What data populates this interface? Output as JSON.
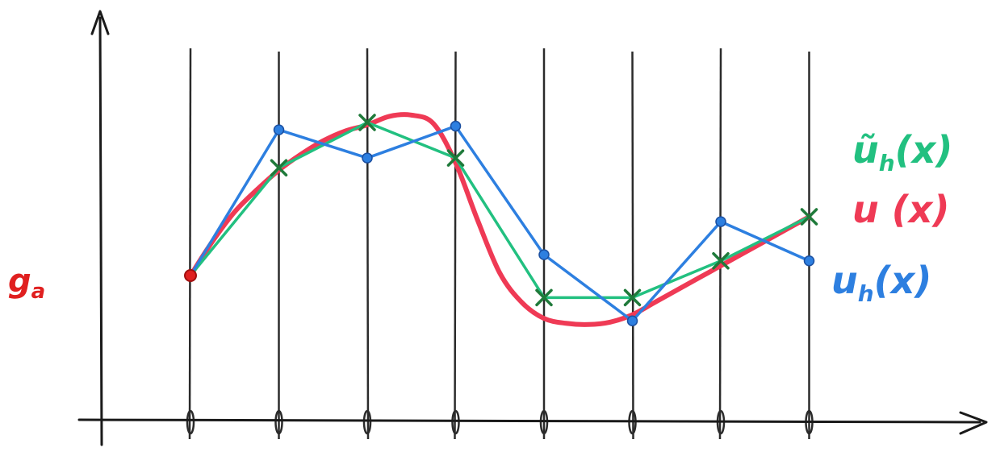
{
  "colors": {
    "axis": "#1a1a1a",
    "gridline": "#2b2b2b",
    "exact": "#ef3a55",
    "nodal_interp": "#22c080",
    "fe_solution": "#2d7fe0",
    "marker_cross": "#1f7a3a",
    "boundary_point": "#e02020"
  },
  "labels": {
    "boundary_value": "g",
    "boundary_value_sub": "a",
    "nodal_interp": "ũ",
    "nodal_interp_sub": "h",
    "nodal_interp_arg": "(x)",
    "exact": "u (x)",
    "fe_solution": "u",
    "fe_solution_sub": "h",
    "fe_solution_arg": "(x)"
  },
  "chart_data": {
    "type": "line",
    "nodes": [
      0,
      1,
      2,
      3,
      4,
      5,
      6,
      7
    ],
    "ylim": [
      -1.6,
      1.6
    ],
    "series": [
      {
        "key": "exact",
        "name": "u (x)",
        "x": [
          0,
          0.25,
          0.5,
          0.75,
          1,
          1.25,
          1.5,
          1.75,
          2,
          2.25,
          2.5,
          2.75,
          3,
          3.25,
          3.5,
          3.75,
          4,
          4.25,
          4.5,
          4.75,
          5,
          5.25,
          5.5,
          5.75,
          6,
          6.25,
          6.5,
          6.75,
          7
        ],
        "y": [
          0,
          0.28,
          0.52,
          0.7,
          0.86,
          0.99,
          1.1,
          1.18,
          1.23,
          1.3,
          1.31,
          1.24,
          0.92,
          0.45,
          0.02,
          -0.22,
          -0.35,
          -0.39,
          -0.4,
          -0.38,
          -0.32,
          -0.22,
          -0.12,
          -0.02,
          0.08,
          0.18,
          0.28,
          0.38,
          0.48
        ]
      },
      {
        "key": "nodal_interp",
        "name": "ũh(x)",
        "x": [
          0,
          1,
          2,
          3,
          4,
          5,
          6,
          7
        ],
        "y": [
          0,
          0.88,
          1.25,
          0.96,
          -0.18,
          -0.18,
          0.12,
          0.48
        ]
      },
      {
        "key": "fe_solution",
        "name": "uh(x)",
        "x": [
          0,
          1,
          2,
          3,
          4,
          5,
          6,
          7
        ],
        "y": [
          0,
          1.19,
          0.96,
          1.22,
          0.17,
          -0.37,
          0.44,
          0.12
        ]
      }
    ],
    "boundary_point": {
      "x": 0,
      "y": 0
    }
  }
}
